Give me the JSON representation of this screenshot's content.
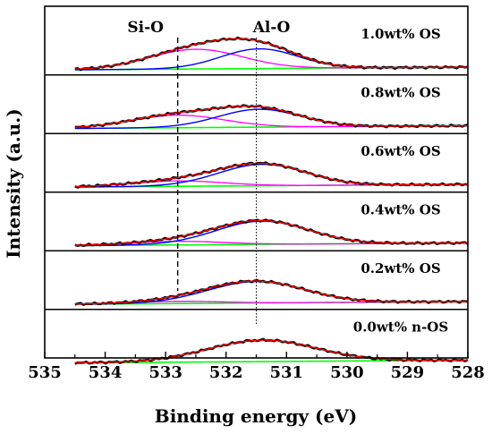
{
  "chart_data": {
    "type": "line",
    "xlabel": "Binding energy (eV)",
    "ylabel": "Intensity (a.u.)",
    "xlim": [
      535,
      528
    ],
    "x_reversed": true,
    "x_ticks": [
      "535",
      "534",
      "533",
      "532",
      "531",
      "530",
      "529",
      "528"
    ],
    "annotations": [
      {
        "text": "Si-O",
        "x": 532.8
      },
      {
        "text": "Al-O",
        "x": 531.5
      }
    ],
    "colors": {
      "raw": "#000000",
      "envelope": "#ff0000",
      "al_o_peak": "#0000ff",
      "si_o_peak": "#ff00ff",
      "background": "#00ff00"
    },
    "panels": [
      {
        "label": "1.0wt% OS",
        "al_o": {
          "center": 531.45,
          "height": 0.55,
          "fwhm": 1.5
        },
        "si_o": {
          "center": 532.5,
          "height": 0.55,
          "fwhm": 1.8
        }
      },
      {
        "label": "0.8wt% OS",
        "al_o": {
          "center": 531.45,
          "height": 0.5,
          "fwhm": 1.6
        },
        "si_o": {
          "center": 532.8,
          "height": 0.35,
          "fwhm": 1.8
        }
      },
      {
        "label": "0.6wt% OS",
        "al_o": {
          "center": 531.4,
          "height": 0.6,
          "fwhm": 1.7
        },
        "si_o": {
          "center": 532.8,
          "height": 0.15,
          "fwhm": 1.8
        }
      },
      {
        "label": "0.4wt% OS",
        "al_o": {
          "center": 531.4,
          "height": 0.65,
          "fwhm": 1.8
        },
        "si_o": {
          "center": 532.8,
          "height": 0.1,
          "fwhm": 1.8
        }
      },
      {
        "label": "0.2wt% OS",
        "al_o": {
          "center": 531.5,
          "height": 0.6,
          "fwhm": 1.9
        },
        "si_o": {
          "center": 532.8,
          "height": 0.06,
          "fwhm": 1.8
        }
      },
      {
        "label": "0.0wt% n-OS",
        "al_o": {
          "center": 531.4,
          "height": 0.6,
          "fwhm": 2.1
        },
        "si_o": null
      }
    ]
  }
}
